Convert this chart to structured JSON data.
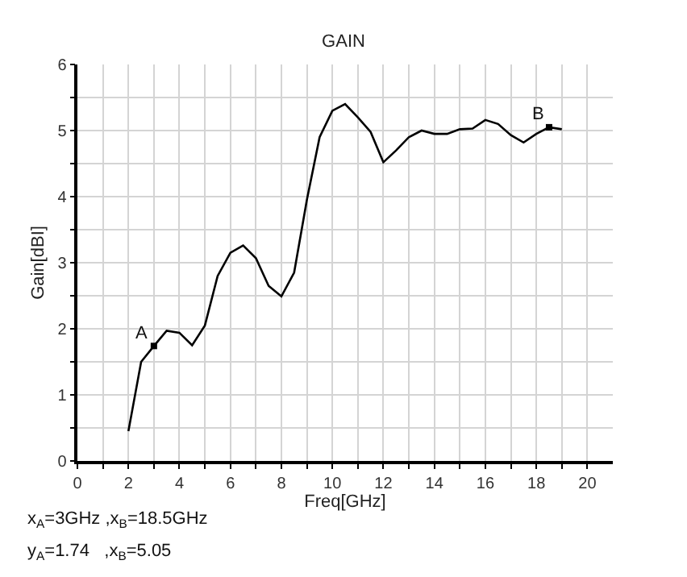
{
  "chart_data": {
    "type": "line",
    "title": "GAIN",
    "xlabel": "Freq[GHz]",
    "ylabel": "Gain[dBI]",
    "x": [
      2,
      2.5,
      3,
      3.5,
      4,
      4.5,
      5,
      5.5,
      6,
      6.5,
      7,
      7.5,
      8,
      8.5,
      9,
      9.5,
      10,
      10.5,
      11,
      11.5,
      12,
      12.5,
      13,
      13.5,
      14,
      14.5,
      15,
      15.5,
      16,
      16.5,
      17,
      17.5,
      18,
      18.5,
      19
    ],
    "series": [
      {
        "color": "#000000",
        "values": [
          0.45,
          1.5,
          1.74,
          1.97,
          1.94,
          1.75,
          2.05,
          2.8,
          3.15,
          3.26,
          3.07,
          2.65,
          2.49,
          2.85,
          3.95,
          4.9,
          5.3,
          5.4,
          5.2,
          4.98,
          4.52,
          4.7,
          4.9,
          5.0,
          4.95,
          4.95,
          5.02,
          5.03,
          5.16,
          5.1,
          4.93,
          4.82,
          4.95,
          5.05,
          5.02
        ]
      },
      {
        "type": "scatter",
        "color": "#000000",
        "marker": "square",
        "x": [
          3,
          18.5
        ],
        "values": [
          1.74,
          5.05
        ]
      }
    ],
    "xlim": [
      0,
      21
    ],
    "xticks": [
      0,
      {
        "value": 1,
        "label": null
      },
      2,
      {
        "value": 3,
        "label": null
      },
      4,
      {
        "value": 5,
        "label": null
      },
      6,
      {
        "value": 7,
        "label": null
      },
      8,
      {
        "value": 9,
        "label": null
      },
      10,
      {
        "value": 11,
        "label": null
      },
      12,
      {
        "value": 13,
        "label": null
      },
      14,
      {
        "value": 15,
        "label": null
      },
      16,
      {
        "value": 17,
        "label": null
      },
      18,
      {
        "value": 19,
        "label": null
      },
      20
    ],
    "ylim": [
      0,
      6
    ],
    "yticks": [
      0,
      {
        "value": 0.5,
        "label": null
      },
      1,
      {
        "value": 1.5,
        "label": null
      },
      2,
      {
        "value": 2.5,
        "label": null
      },
      3,
      {
        "value": 3.5,
        "label": null
      },
      4,
      {
        "value": 4.5,
        "label": null
      },
      5,
      {
        "value": 5.5,
        "label": null
      },
      6
    ],
    "grid": true,
    "marker": "none",
    "line_style": "solid",
    "annotations": [
      {
        "text": "A",
        "x": 3,
        "y": 1.74
      },
      {
        "text": "B",
        "x": 18.5,
        "y": 5.05
      },
      "x$_{A}$=3GHz ,x$_{B}$=18.5GHz",
      "y$_{A}$=1.74   ,x$_{B}$=5.05"
    ]
  }
}
